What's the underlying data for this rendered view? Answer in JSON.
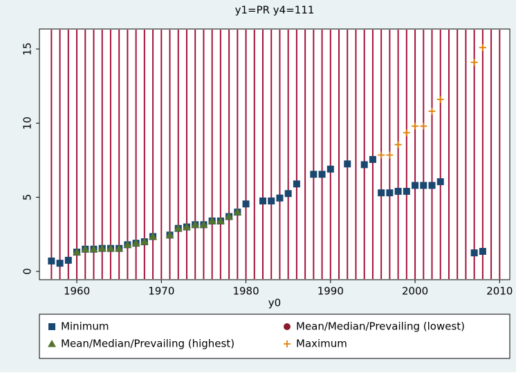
{
  "chart_data": {
    "type": "scatter",
    "title": "y1=PR y4=111",
    "x_label": "y0",
    "xlim": [
      1955.58,
      2011.2
    ],
    "ylim": [
      -0.56,
      16.35
    ],
    "xticks": [
      1960,
      1970,
      1980,
      1990,
      2000,
      2010
    ],
    "yticks": [
      0,
      5,
      10,
      15
    ],
    "xlines": [
      1957,
      1958,
      1959,
      1960,
      1961,
      1962,
      1963,
      1964,
      1965,
      1966,
      1967,
      1968,
      1969,
      1970,
      1971,
      1972,
      1973,
      1974,
      1975,
      1976,
      1977,
      1978,
      1979,
      1980,
      1981,
      1982,
      1983,
      1984,
      1985,
      1986,
      1987,
      1988,
      1989,
      1990,
      1991,
      1992,
      1993,
      1994,
      1995,
      1996,
      1997,
      1998,
      1999,
      2000,
      2001,
      2002,
      2003,
      2004,
      2005,
      2006,
      2007,
      2008,
      2009,
      2010
    ],
    "xline_color": "#a3123a",
    "series": [
      {
        "name": "Mean/Median/Prevailing (lowest)",
        "color": "#8b1a2b",
        "marker": "circle",
        "x": [
          1960,
          1961,
          1962,
          1963,
          1964,
          1965,
          1966,
          1967,
          1968,
          1969,
          1971,
          1972,
          1973,
          1974,
          1975,
          1976,
          1977,
          1978,
          1979
        ],
        "values": [
          1.3,
          1.5,
          1.5,
          1.55,
          1.55,
          1.55,
          1.8,
          1.9,
          2.0,
          2.35,
          2.45,
          2.9,
          3.0,
          3.15,
          3.15,
          3.4,
          3.4,
          3.7,
          4.0
        ]
      },
      {
        "name": "Minimum",
        "color": "#1a476f",
        "marker": "square",
        "x": [
          1957,
          1958,
          1959,
          1960,
          1961,
          1962,
          1963,
          1964,
          1965,
          1966,
          1967,
          1968,
          1969,
          1971,
          1972,
          1973,
          1974,
          1975,
          1976,
          1977,
          1978,
          1979,
          1980,
          1982,
          1983,
          1984,
          1985,
          1986,
          1988,
          1989,
          1990,
          1992,
          1994,
          1995,
          1996,
          1997,
          1998,
          1999,
          2000,
          2001,
          2002,
          2003,
          2007,
          2008
        ],
        "values": [
          0.7,
          0.55,
          0.75,
          1.3,
          1.5,
          1.5,
          1.55,
          1.55,
          1.55,
          1.8,
          1.9,
          2.0,
          2.35,
          2.45,
          2.9,
          3.0,
          3.15,
          3.15,
          3.4,
          3.4,
          3.7,
          4.0,
          4.55,
          4.75,
          4.75,
          4.95,
          5.25,
          5.9,
          6.55,
          6.55,
          6.9,
          7.25,
          7.2,
          7.55,
          5.3,
          5.3,
          5.4,
          5.4,
          5.8,
          5.8,
          5.8,
          6.05,
          1.25,
          1.35
        ]
      },
      {
        "name": "Mean/Median/Prevailing (highest)",
        "color": "#55752f",
        "marker": "triangle",
        "x": [
          1960,
          1961,
          1962,
          1963,
          1964,
          1965,
          1966,
          1967,
          1968,
          1969,
          1971,
          1972,
          1973,
          1974,
          1975,
          1976,
          1977,
          1978,
          1979
        ],
        "values": [
          1.3,
          1.5,
          1.5,
          1.55,
          1.55,
          1.55,
          1.8,
          1.9,
          2.0,
          2.35,
          2.45,
          2.9,
          3.0,
          3.15,
          3.15,
          3.4,
          3.4,
          3.7,
          4.0
        ]
      },
      {
        "name": "Maximum",
        "color": "#e37e00",
        "marker": "plus",
        "x": [
          1996,
          1997,
          1998,
          1999,
          2000,
          2001,
          2002,
          2003,
          2007,
          2008
        ],
        "values": [
          7.85,
          7.85,
          8.55,
          9.35,
          9.8,
          9.8,
          10.8,
          11.6,
          14.1,
          15.1
        ]
      }
    ]
  }
}
